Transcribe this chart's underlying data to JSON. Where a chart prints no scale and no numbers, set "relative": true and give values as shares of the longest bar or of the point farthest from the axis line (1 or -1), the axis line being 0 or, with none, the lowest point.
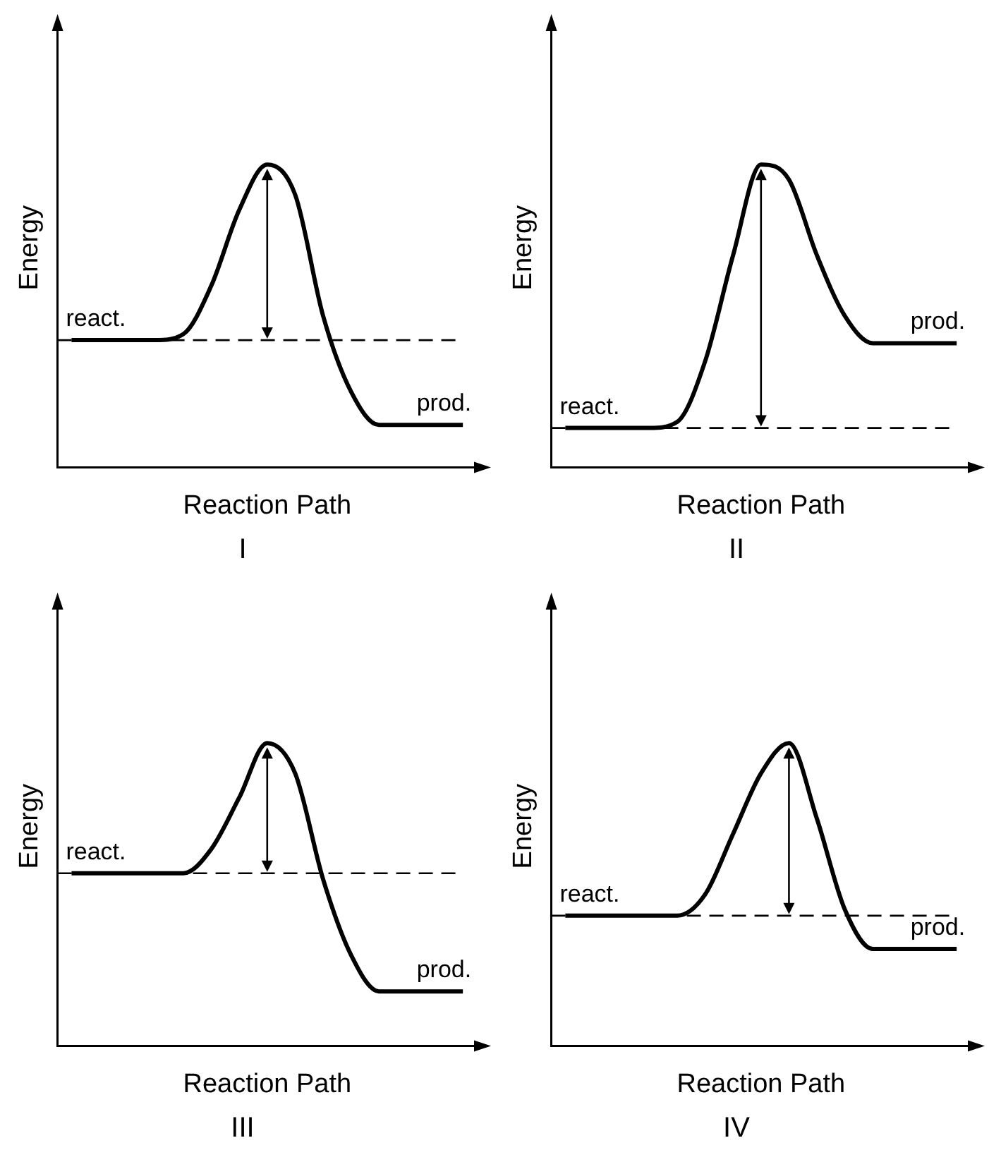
{
  "chart_data": [
    {
      "type": "line",
      "title": "I",
      "xlabel": "Reaction Path",
      "ylabel": "Energy",
      "relative": true,
      "tick_labels": false,
      "categories": [
        null,
        null,
        null,
        null,
        null,
        null,
        null,
        null,
        null,
        null,
        null,
        null,
        null,
        null,
        null
      ],
      "series": [
        {
          "color": "#000000",
          "values": [
            0.42,
            0.42,
            0.42,
            0.42,
            0.44,
            0.6,
            0.85,
            1,
            0.9,
            0.5,
            0.25,
            0.14,
            0.14,
            0.14,
            0.14
          ]
        }
      ],
      "ref_lines": [
        {
          "axis": "y",
          "value": 0.42,
          "color": "#000000",
          "line_style": "dashed"
        }
      ],
      "annotations": [
        {
          "text": "react.",
          "y": 0.42
        },
        {
          "text": "prod.",
          "y": 0.14
        }
      ]
    },
    {
      "type": "line",
      "title": "II",
      "xlabel": "Reaction Path",
      "ylabel": "Energy",
      "relative": true,
      "tick_labels": false,
      "categories": [
        null,
        null,
        null,
        null,
        null,
        null,
        null,
        null,
        null,
        null,
        null,
        null,
        null,
        null,
        null
      ],
      "series": [
        {
          "color": "#000000",
          "values": [
            0.13,
            0.13,
            0.13,
            0.13,
            0.15,
            0.35,
            0.7,
            1,
            0.95,
            0.7,
            0.5,
            0.41,
            0.41,
            0.41,
            0.41
          ]
        }
      ],
      "ref_lines": [
        {
          "axis": "y",
          "value": 0.13,
          "color": "#000000",
          "line_style": "dashed"
        }
      ],
      "annotations": [
        {
          "text": "react.",
          "y": 0.13
        },
        {
          "text": "prod.",
          "y": 0.41
        }
      ]
    },
    {
      "type": "line",
      "title": "III",
      "xlabel": "Reaction Path",
      "ylabel": "Energy",
      "relative": true,
      "tick_labels": false,
      "categories": [
        null,
        null,
        null,
        null,
        null,
        null,
        null,
        null,
        null,
        null,
        null,
        null,
        null,
        null,
        null
      ],
      "series": [
        {
          "color": "#000000",
          "values": [
            0.57,
            0.57,
            0.57,
            0.57,
            0.57,
            0.65,
            0.82,
            1,
            0.9,
            0.55,
            0.3,
            0.18,
            0.18,
            0.18,
            0.18
          ]
        }
      ],
      "ref_lines": [
        {
          "axis": "y",
          "value": 0.57,
          "color": "#000000",
          "line_style": "dashed"
        }
      ],
      "annotations": [
        {
          "text": "react.",
          "y": 0.57
        },
        {
          "text": "prod.",
          "y": 0.18
        }
      ]
    },
    {
      "type": "line",
      "title": "IV",
      "xlabel": "Reaction Path",
      "ylabel": "Energy",
      "relative": true,
      "tick_labels": false,
      "categories": [
        null,
        null,
        null,
        null,
        null,
        null,
        null,
        null,
        null,
        null,
        null,
        null,
        null,
        null,
        null
      ],
      "series": [
        {
          "color": "#000000",
          "values": [
            0.43,
            0.43,
            0.43,
            0.43,
            0.43,
            0.5,
            0.7,
            0.9,
            1,
            0.75,
            0.45,
            0.32,
            0.32,
            0.32,
            0.32
          ]
        }
      ],
      "ref_lines": [
        {
          "axis": "y",
          "value": 0.43,
          "color": "#000000",
          "line_style": "dashed"
        }
      ],
      "annotations": [
        {
          "text": "react.",
          "y": 0.43
        },
        {
          "text": "prod.",
          "y": 0.32
        }
      ]
    }
  ]
}
